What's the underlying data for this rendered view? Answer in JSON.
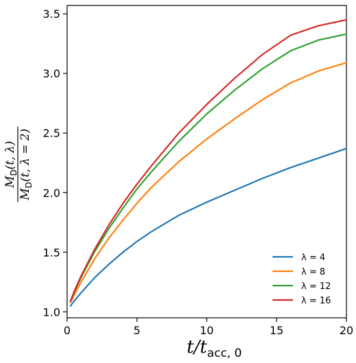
{
  "chart_data": {
    "type": "line",
    "title": "",
    "xlabel": "t/t_acc,0",
    "ylabel": "M_D(t, λ) / M_D(t, λ = 2)",
    "xlim": [
      0,
      20
    ],
    "ylim": [
      0.95,
      3.57
    ],
    "x_ticks": [
      0,
      5,
      10,
      15,
      20
    ],
    "y_ticks": [
      1.0,
      1.5,
      2.0,
      2.5,
      3.0,
      3.5
    ],
    "x_tick_labels": [
      "0",
      "5",
      "10",
      "15",
      "20"
    ],
    "y_tick_labels": [
      "1.0",
      "1.5",
      "2.0",
      "2.5",
      "3.0",
      "3.5"
    ],
    "grid": false,
    "legend_position": "lower-right",
    "x": [
      0.25,
      0.5,
      1,
      2,
      3,
      4,
      5,
      6,
      8,
      10,
      12,
      14,
      16,
      18,
      20
    ],
    "series": [
      {
        "name": "λ = 4",
        "color": "#1f77b4",
        "values": [
          1.05,
          1.09,
          1.16,
          1.29,
          1.4,
          1.5,
          1.59,
          1.67,
          1.81,
          1.92,
          2.02,
          2.12,
          2.21,
          2.29,
          2.37
        ]
      },
      {
        "name": "λ = 8",
        "color": "#ff7f0e",
        "values": [
          1.08,
          1.14,
          1.25,
          1.45,
          1.62,
          1.77,
          1.91,
          2.04,
          2.26,
          2.45,
          2.62,
          2.78,
          2.92,
          3.02,
          3.09
        ]
      },
      {
        "name": "λ = 12",
        "color": "#2ca02c",
        "values": [
          1.09,
          1.16,
          1.29,
          1.51,
          1.7,
          1.87,
          2.03,
          2.17,
          2.43,
          2.66,
          2.86,
          3.04,
          3.19,
          3.28,
          3.33
        ]
      },
      {
        "name": "λ = 16",
        "color": "#d62728",
        "values": [
          1.09,
          1.17,
          1.3,
          1.53,
          1.73,
          1.91,
          2.07,
          2.22,
          2.5,
          2.74,
          2.96,
          3.16,
          3.32,
          3.4,
          3.45
        ]
      }
    ]
  }
}
